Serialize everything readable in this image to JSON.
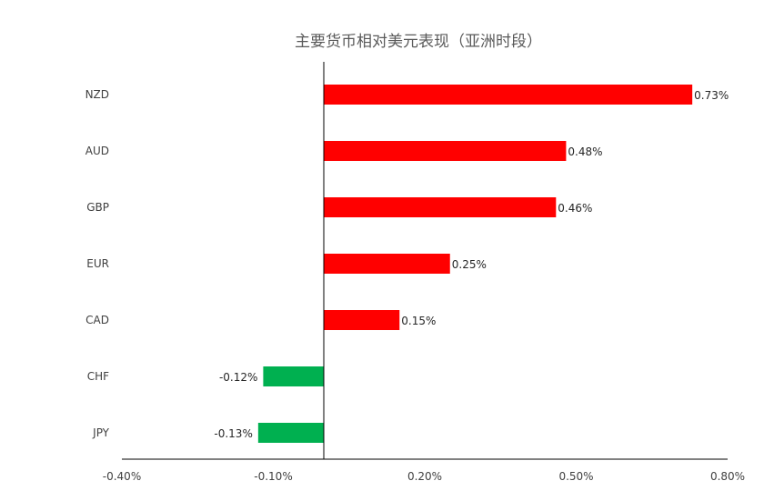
{
  "chart_data": {
    "type": "bar",
    "orientation": "horizontal",
    "title": "主要货币相对美元表现（亚洲时段）",
    "categories": [
      "NZD",
      "AUD",
      "GBP",
      "EUR",
      "CAD",
      "CHF",
      "JPY"
    ],
    "values": [
      0.73,
      0.48,
      0.46,
      0.25,
      0.15,
      -0.12,
      -0.13
    ],
    "value_labels": [
      "0.73%",
      "0.48%",
      "0.46%",
      "0.25%",
      "0.15%",
      "-0.12%",
      "-0.13%"
    ],
    "xlim": [
      -0.4,
      0.8
    ],
    "xticks": [
      -0.4,
      -0.1,
      0.2,
      0.5,
      0.8
    ],
    "xtick_labels": [
      "-0.40%",
      "-0.10%",
      "0.20%",
      "0.50%",
      "0.80%"
    ],
    "xlabel": "",
    "ylabel": "",
    "grid": false,
    "legend": "none",
    "colors": {
      "positive": "#ff0000",
      "negative": "#00b050",
      "axis": "#000000"
    }
  }
}
